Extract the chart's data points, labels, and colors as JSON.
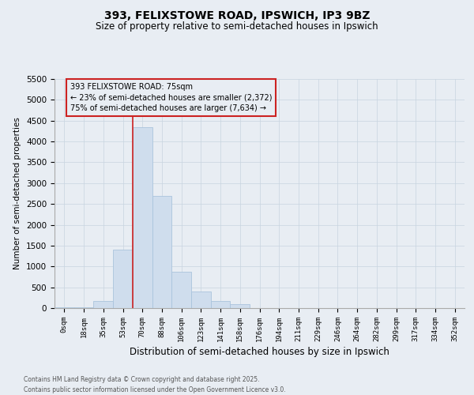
{
  "title_line1": "393, FELIXSTOWE ROAD, IPSWICH, IP3 9BZ",
  "title_line2": "Size of property relative to semi-detached houses in Ipswich",
  "xlabel": "Distribution of semi-detached houses by size in Ipswich",
  "ylabel": "Number of semi-detached properties",
  "bin_labels": [
    "0sqm",
    "18sqm",
    "35sqm",
    "53sqm",
    "70sqm",
    "88sqm",
    "106sqm",
    "123sqm",
    "141sqm",
    "158sqm",
    "176sqm",
    "194sqm",
    "211sqm",
    "229sqm",
    "246sqm",
    "264sqm",
    "282sqm",
    "299sqm",
    "317sqm",
    "334sqm",
    "352sqm"
  ],
  "bar_values": [
    10,
    10,
    175,
    1400,
    4350,
    2700,
    875,
    400,
    175,
    100,
    0,
    0,
    0,
    0,
    0,
    0,
    0,
    0,
    0,
    0,
    0
  ],
  "bar_color": "#cfdded",
  "bar_edge_color": "#aac4dd",
  "grid_color": "#c8d4e0",
  "background_color": "#e8edf3",
  "vline_x_idx": 3.5,
  "vline_color": "#cc2222",
  "property_label": "393 FELIXSTOWE ROAD: 75sqm",
  "smaller_label": "← 23% of semi-detached houses are smaller (2,372)",
  "larger_label": "75% of semi-detached houses are larger (7,634) →",
  "annotation_box_color": "#cc2222",
  "ylim": [
    0,
    5500
  ],
  "yticks": [
    0,
    500,
    1000,
    1500,
    2000,
    2500,
    3000,
    3500,
    4000,
    4500,
    5000,
    5500
  ],
  "footnote_line1": "Contains HM Land Registry data © Crown copyright and database right 2025.",
  "footnote_line2": "Contains public sector information licensed under the Open Government Licence v3.0."
}
